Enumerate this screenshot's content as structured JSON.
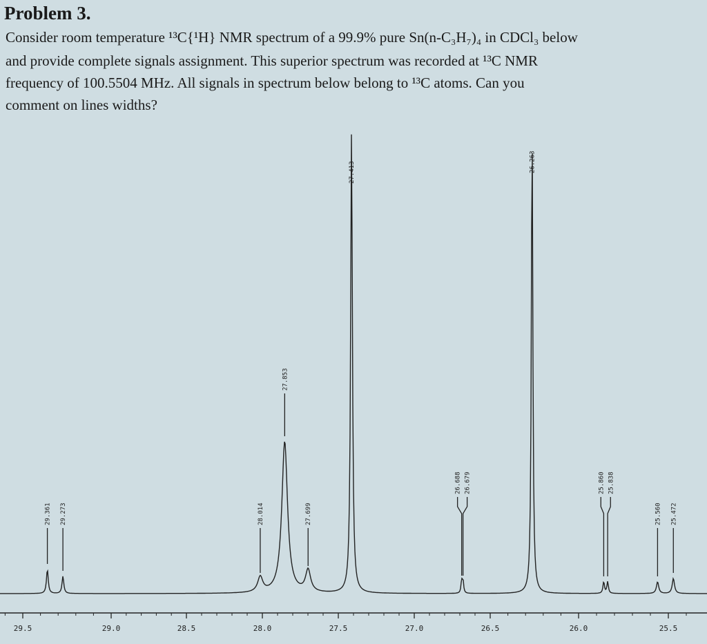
{
  "problem": {
    "title": "Problem 3.",
    "lines": [
      "Consider room temperature ¹³C{¹H} NMR spectrum of a 99.9% pure Sn(n-C₃H₇)₄ in CDCl₃ below",
      "and provide complete signals assignment. This superior spectrum was recorded at ¹³C NMR",
      "frequency of 100.5504 MHz. All signals in spectrum below belong to ¹³C atoms. Can you",
      "comment on lines widths?"
    ]
  },
  "chart_data": {
    "type": "line",
    "title": "",
    "xlabel": "",
    "ylabel": "",
    "xlim": [
      29.55,
      25.35
    ],
    "x_reversed": true,
    "x_ticks": [
      "29.5",
      "29.0",
      "28.5",
      "28.0",
      "27.5",
      "27.0",
      "26.5",
      "26.0",
      "25.5"
    ],
    "peaks": [
      {
        "ppm": 29.361,
        "label": "29.361",
        "rel_height": 35,
        "width": 0.012
      },
      {
        "ppm": 29.273,
        "label": "29.273",
        "rel_height": 25,
        "width": 0.012
      },
      {
        "ppm": 28.014,
        "label": "28.014",
        "rel_height": 22,
        "width": 0.04
      },
      {
        "ppm": 27.853,
        "label": "27.853",
        "rel_height": 220,
        "width": 0.045
      },
      {
        "ppm": 27.699,
        "label": "27.699",
        "rel_height": 32,
        "width": 0.04
      },
      {
        "ppm": 27.413,
        "label": "27.413",
        "rel_height": 670,
        "width": 0.014
      },
      {
        "ppm": 26.688,
        "label": "26.688",
        "rel_height": 18,
        "width": 0.01
      },
      {
        "ppm": 26.679,
        "label": "26.679",
        "rel_height": 18,
        "width": 0.01
      },
      {
        "ppm": 26.263,
        "label": "26.263",
        "rel_height": 680,
        "width": 0.01
      },
      {
        "ppm": 25.86,
        "label": "25.860",
        "rel_height": 17,
        "width": 0.01
      },
      {
        "ppm": 25.838,
        "label": "25.838",
        "rel_height": 17,
        "width": 0.01
      },
      {
        "ppm": 25.56,
        "label": "25.560",
        "rel_height": 17,
        "width": 0.015
      },
      {
        "ppm": 25.472,
        "label": "25.472",
        "rel_height": 22,
        "width": 0.015
      }
    ],
    "grid": false
  }
}
